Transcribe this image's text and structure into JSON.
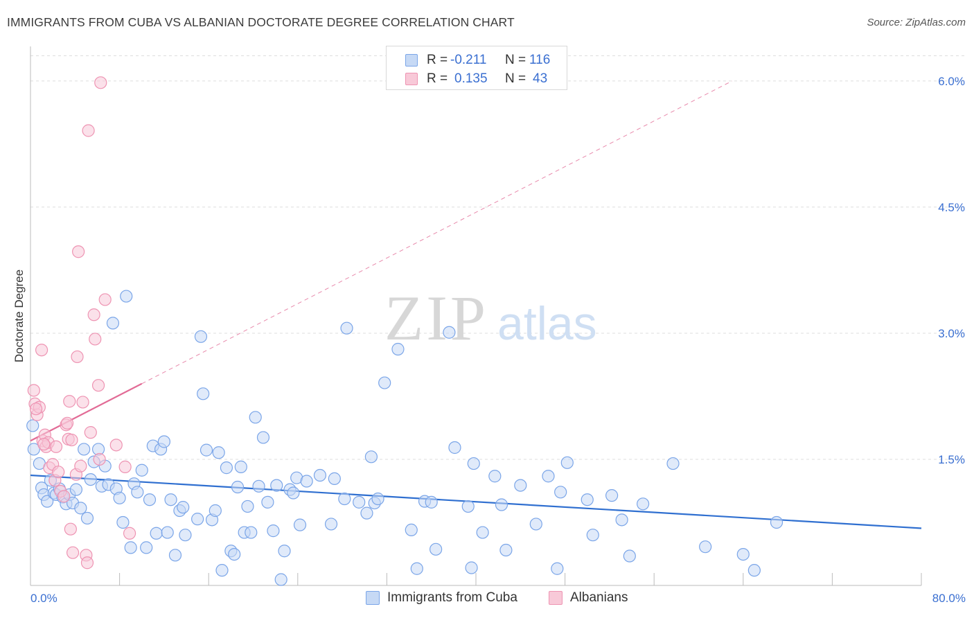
{
  "title": "IMMIGRANTS FROM CUBA VS ALBANIAN DOCTORATE DEGREE CORRELATION CHART",
  "source": "Source: ZipAtlas.com",
  "watermark": {
    "zip": "ZIP",
    "atlas": "atlas"
  },
  "legend": {
    "r_label": "R =",
    "n_label": "N =",
    "rows": [
      {
        "r": "-0.211",
        "n": "116",
        "color": "#7aa5e8"
      },
      {
        "r": "0.135",
        "n": "43",
        "color": "#ee93b2"
      }
    ]
  },
  "colors": {
    "blue_fill": "#c6d9f5",
    "blue_stroke": "#7aa5e8",
    "blue_line": "#2f6fd0",
    "pink_fill": "#f8c9d8",
    "pink_stroke": "#ee93b2",
    "pink_line": "#e26b96",
    "tick_label": "#3a6fd1",
    "grid": "#dddddd"
  },
  "chart_data": {
    "type": "scatter",
    "title": "IMMIGRANTS FROM CUBA VS ALBANIAN DOCTORATE DEGREE CORRELATION CHART",
    "xlabel": "",
    "ylabel": "Doctorate Degree",
    "xlim": [
      0,
      80
    ],
    "ylim": [
      0,
      6.3
    ],
    "x_tick_labels": [
      "0.0%",
      "80.0%"
    ],
    "y_ticks": [
      1.5,
      3.0,
      4.5,
      6.0
    ],
    "y_tick_labels": [
      "1.5%",
      "3.0%",
      "4.5%",
      "6.0%"
    ],
    "grid": "horizontal dashed",
    "legend_position": "top-center and bottom-center",
    "series": [
      {
        "name": "Immigrants from Cuba",
        "r": -0.211,
        "n": 116,
        "trend": {
          "x": [
            0,
            80
          ],
          "y": [
            1.31,
            0.68
          ],
          "style": "solid"
        },
        "points": [
          [
            0.2,
            1.9
          ],
          [
            0.3,
            1.62
          ],
          [
            0.8,
            1.45
          ],
          [
            1.0,
            1.16
          ],
          [
            1.2,
            1.08
          ],
          [
            1.5,
            1.0
          ],
          [
            1.8,
            1.25
          ],
          [
            2.1,
            1.1
          ],
          [
            2.3,
            1.08
          ],
          [
            2.6,
            1.15
          ],
          [
            2.9,
            1.05
          ],
          [
            3.2,
            0.97
          ],
          [
            3.5,
            1.08
          ],
          [
            3.8,
            0.98
          ],
          [
            4.1,
            1.14
          ],
          [
            4.5,
            0.92
          ],
          [
            4.8,
            1.62
          ],
          [
            5.1,
            0.8
          ],
          [
            5.4,
            1.26
          ],
          [
            5.7,
            1.47
          ],
          [
            6.1,
            1.62
          ],
          [
            6.4,
            1.18
          ],
          [
            6.7,
            1.42
          ],
          [
            7.0,
            1.2
          ],
          [
            7.4,
            3.12
          ],
          [
            7.7,
            1.15
          ],
          [
            8.0,
            1.04
          ],
          [
            8.3,
            0.75
          ],
          [
            8.6,
            3.44
          ],
          [
            9.0,
            0.45
          ],
          [
            9.3,
            1.21
          ],
          [
            9.6,
            1.11
          ],
          [
            10.0,
            1.37
          ],
          [
            10.4,
            0.45
          ],
          [
            10.7,
            1.02
          ],
          [
            11.0,
            1.66
          ],
          [
            11.3,
            0.62
          ],
          [
            11.7,
            1.62
          ],
          [
            12.0,
            1.71
          ],
          [
            12.3,
            0.63
          ],
          [
            12.6,
            1.02
          ],
          [
            13.0,
            0.36
          ],
          [
            13.4,
            0.89
          ],
          [
            13.7,
            0.93
          ],
          [
            13.9,
            0.6
          ],
          [
            15.0,
            0.79
          ],
          [
            15.3,
            2.96
          ],
          [
            15.5,
            2.28
          ],
          [
            15.8,
            1.61
          ],
          [
            16.3,
            0.78
          ],
          [
            16.6,
            0.89
          ],
          [
            16.9,
            1.58
          ],
          [
            17.2,
            0.18
          ],
          [
            17.6,
            1.4
          ],
          [
            18.0,
            0.41
          ],
          [
            18.3,
            0.37
          ],
          [
            18.6,
            1.17
          ],
          [
            18.9,
            1.41
          ],
          [
            19.2,
            0.63
          ],
          [
            19.5,
            0.94
          ],
          [
            19.8,
            0.63
          ],
          [
            20.2,
            2.0
          ],
          [
            20.5,
            1.18
          ],
          [
            20.9,
            1.76
          ],
          [
            21.3,
            0.99
          ],
          [
            21.8,
            0.65
          ],
          [
            22.1,
            1.19
          ],
          [
            22.5,
            0.07
          ],
          [
            22.8,
            0.41
          ],
          [
            23.3,
            1.14
          ],
          [
            23.6,
            1.1
          ],
          [
            23.9,
            1.28
          ],
          [
            24.2,
            0.72
          ],
          [
            24.8,
            1.24
          ],
          [
            26.0,
            1.31
          ],
          [
            27.0,
            0.73
          ],
          [
            27.3,
            1.27
          ],
          [
            28.2,
            1.03
          ],
          [
            28.4,
            3.06
          ],
          [
            29.5,
            0.99
          ],
          [
            30.2,
            0.86
          ],
          [
            30.6,
            1.53
          ],
          [
            30.9,
            0.98
          ],
          [
            31.2,
            1.03
          ],
          [
            31.8,
            2.41
          ],
          [
            33.0,
            2.81
          ],
          [
            34.2,
            0.66
          ],
          [
            34.7,
            0.2
          ],
          [
            35.4,
            1.0
          ],
          [
            36.0,
            0.99
          ],
          [
            36.4,
            0.43
          ],
          [
            37.6,
            3.01
          ],
          [
            38.1,
            1.64
          ],
          [
            39.3,
            0.94
          ],
          [
            39.6,
            0.21
          ],
          [
            39.8,
            1.45
          ],
          [
            40.6,
            0.63
          ],
          [
            41.7,
            1.3
          ],
          [
            42.3,
            0.96
          ],
          [
            42.7,
            0.42
          ],
          [
            44.0,
            1.19
          ],
          [
            45.4,
            0.73
          ],
          [
            46.5,
            1.3
          ],
          [
            47.3,
            0.2
          ],
          [
            47.6,
            1.11
          ],
          [
            48.2,
            1.46
          ],
          [
            50.0,
            1.02
          ],
          [
            50.5,
            0.6
          ],
          [
            52.2,
            1.07
          ],
          [
            53.1,
            0.78
          ],
          [
            53.8,
            0.35
          ],
          [
            55.0,
            0.97
          ],
          [
            57.7,
            1.45
          ],
          [
            60.6,
            0.46
          ],
          [
            64.0,
            0.37
          ],
          [
            65.0,
            0.18
          ],
          [
            67.0,
            0.75
          ]
        ]
      },
      {
        "name": "Albanians",
        "r": 0.135,
        "n": 43,
        "trend": {
          "x": [
            0,
            10
          ],
          "y": [
            1.72,
            2.4
          ],
          "style": "solid",
          "extension": {
            "x": [
              10,
              63
            ],
            "y": [
              2.4,
              6.0
            ],
            "style": "dashed"
          }
        },
        "points": [
          [
            0.3,
            2.32
          ],
          [
            0.4,
            2.16
          ],
          [
            0.6,
            2.03
          ],
          [
            0.8,
            2.12
          ],
          [
            1.0,
            2.8
          ],
          [
            1.1,
            1.72
          ],
          [
            1.3,
            1.79
          ],
          [
            1.4,
            1.65
          ],
          [
            1.6,
            1.7
          ],
          [
            1.7,
            1.4
          ],
          [
            2.0,
            1.44
          ],
          [
            2.2,
            1.25
          ],
          [
            2.3,
            1.65
          ],
          [
            2.5,
            1.35
          ],
          [
            2.7,
            1.12
          ],
          [
            3.0,
            1.06
          ],
          [
            3.2,
            1.91
          ],
          [
            3.3,
            1.93
          ],
          [
            3.4,
            1.74
          ],
          [
            3.5,
            2.19
          ],
          [
            3.6,
            0.67
          ],
          [
            3.7,
            1.73
          ],
          [
            3.8,
            0.39
          ],
          [
            4.1,
            1.32
          ],
          [
            4.2,
            2.72
          ],
          [
            4.3,
            3.97
          ],
          [
            4.5,
            1.42
          ],
          [
            4.7,
            2.18
          ],
          [
            5.0,
            0.36
          ],
          [
            5.1,
            0.27
          ],
          [
            5.2,
            5.41
          ],
          [
            5.4,
            1.82
          ],
          [
            5.7,
            3.22
          ],
          [
            5.8,
            2.93
          ],
          [
            6.1,
            2.38
          ],
          [
            6.2,
            1.5
          ],
          [
            6.3,
            5.98
          ],
          [
            6.7,
            3.4
          ],
          [
            7.7,
            1.67
          ],
          [
            8.5,
            1.41
          ],
          [
            8.9,
            0.62
          ],
          [
            0.5,
            2.1
          ],
          [
            1.2,
            1.68
          ]
        ]
      }
    ]
  },
  "x_axis": {
    "left_label": "0.0%",
    "right_label": "80.0%"
  },
  "bottom_legend": {
    "items": [
      "Immigrants from Cuba",
      "Albanians"
    ]
  }
}
